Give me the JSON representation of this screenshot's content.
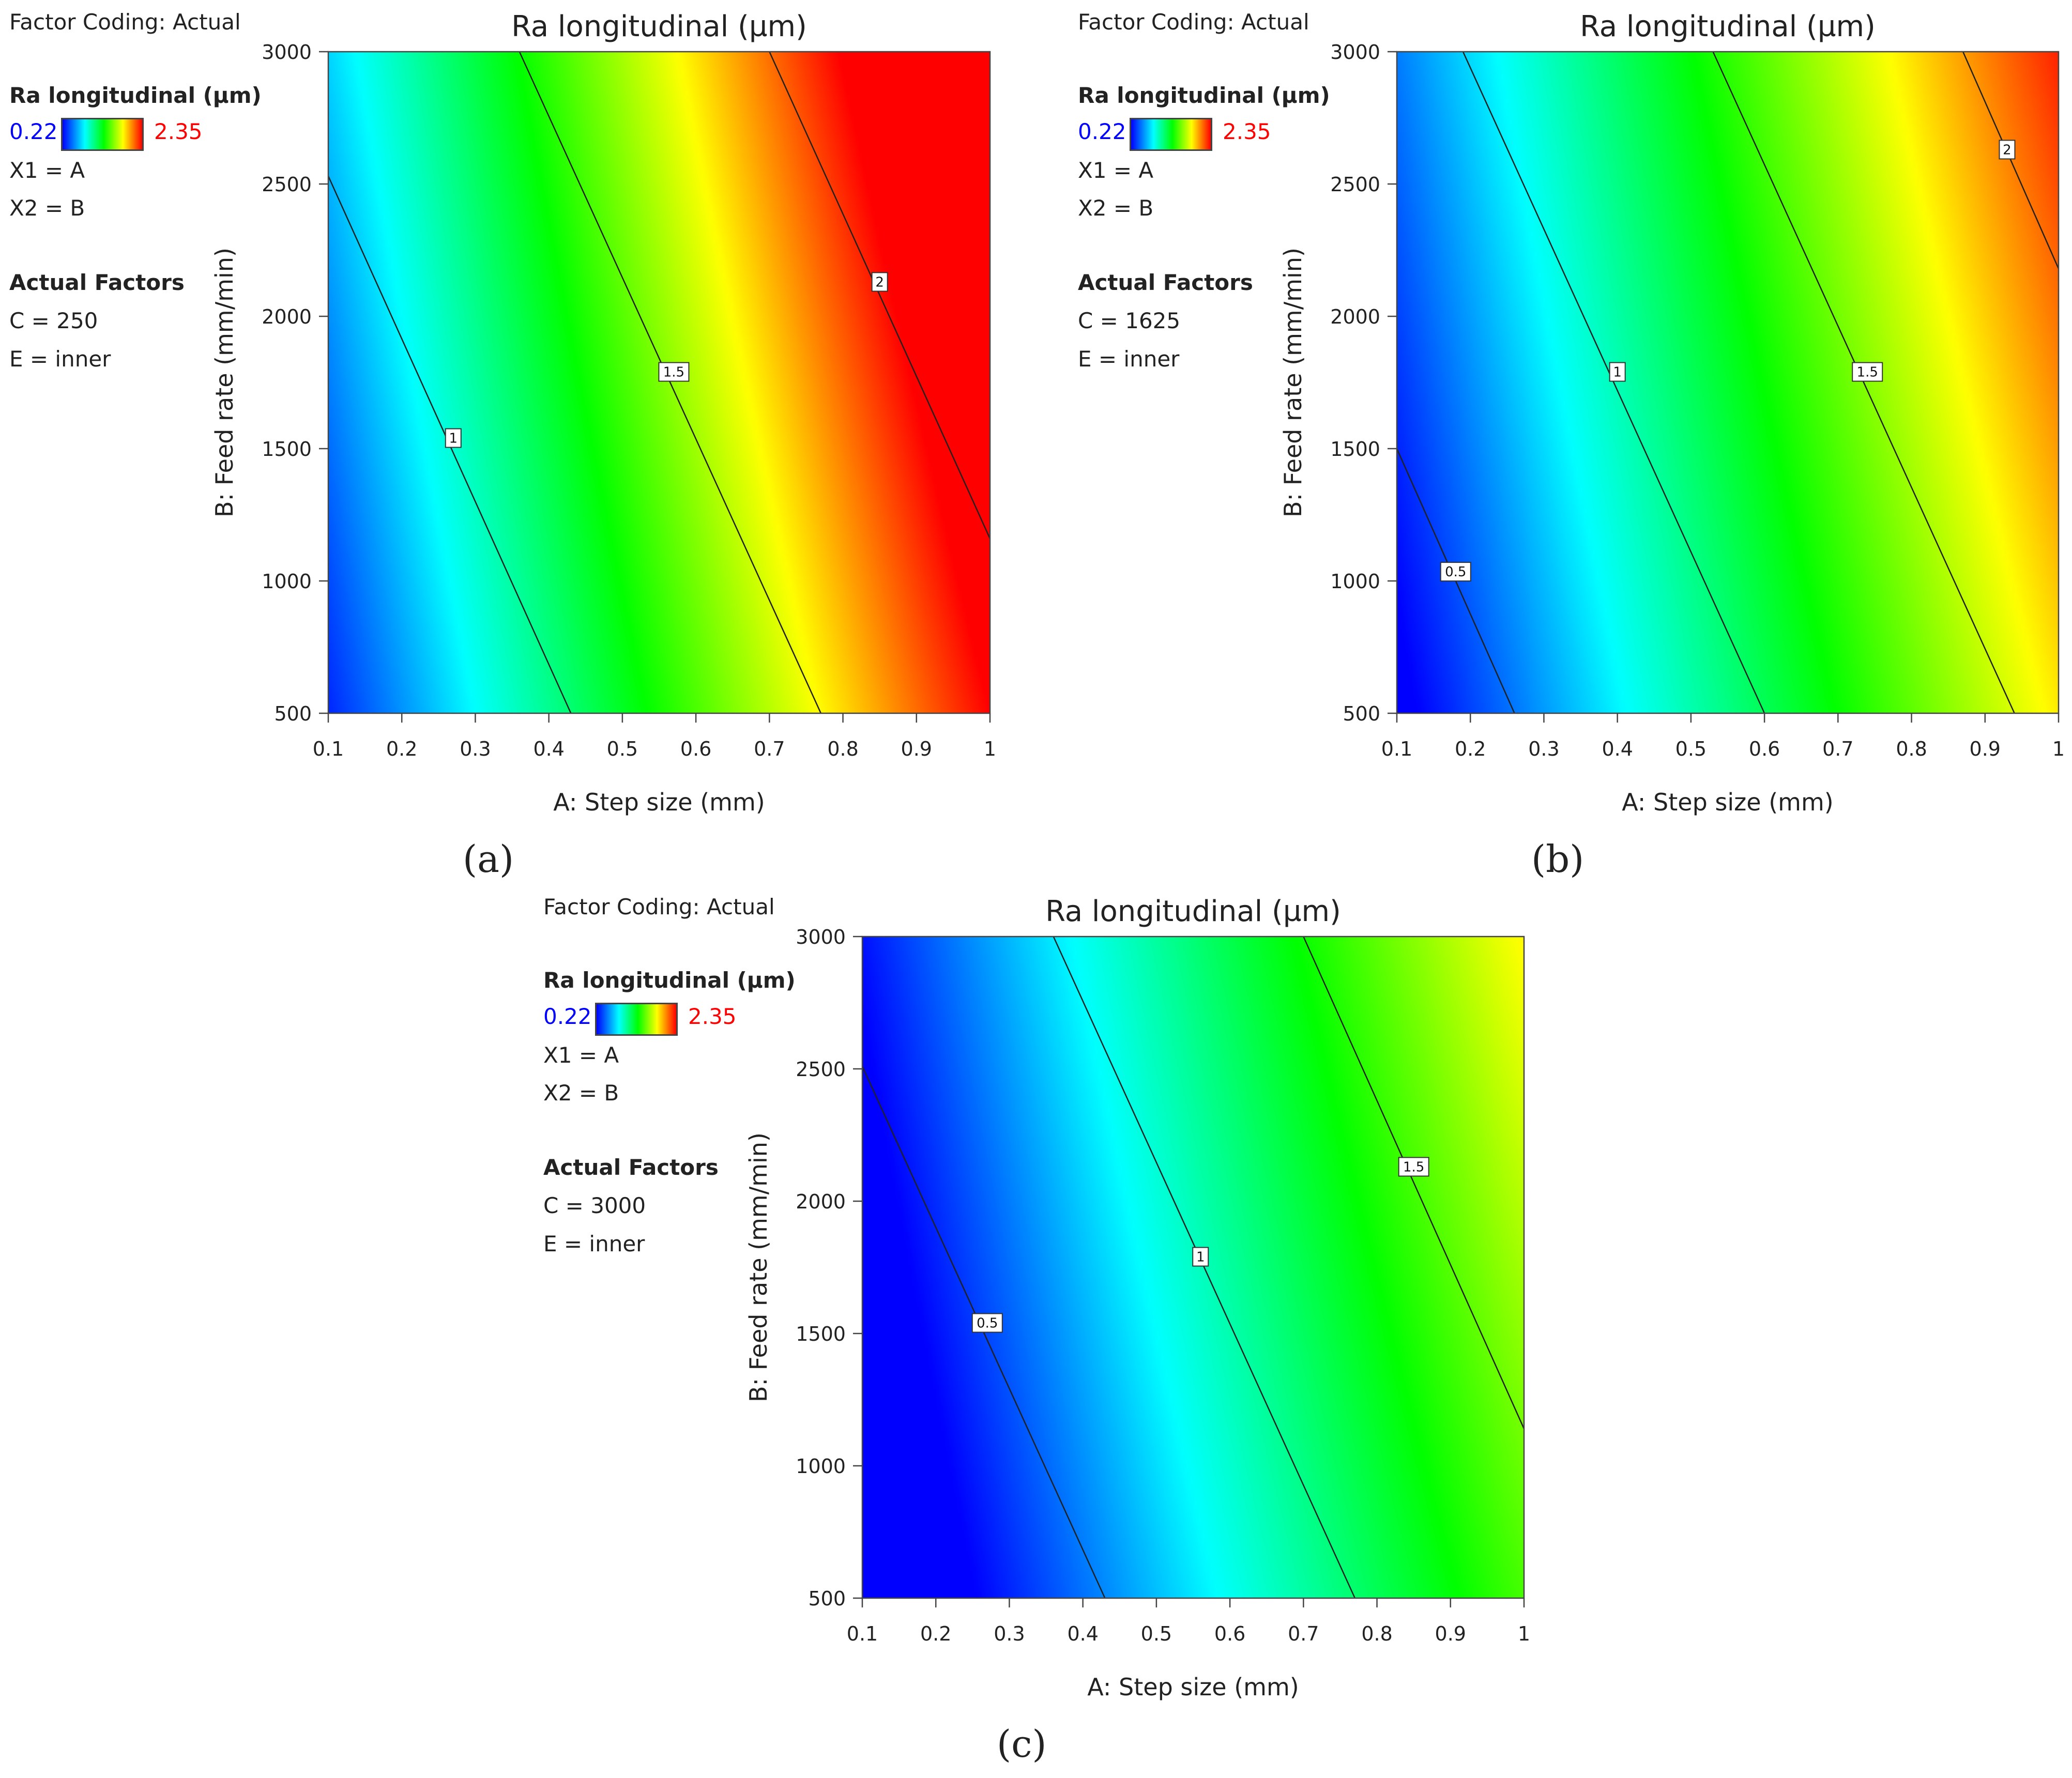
{
  "chart_data": [
    {
      "type": "heatmap",
      "panel_label": "(a)",
      "title": "Ra longitudinal (µm)",
      "xlabel": "A: Step size (mm)",
      "ylabel": "B: Feed rate (mm/min)",
      "xlim": [
        0.1,
        1.0
      ],
      "ylim": [
        500,
        3000
      ],
      "x_ticks": [
        "0.1",
        "0.2",
        "0.3",
        "0.4",
        "0.5",
        "0.6",
        "0.7",
        "0.8",
        "0.9",
        "1"
      ],
      "y_ticks": [
        "500",
        "1000",
        "1500",
        "2000",
        "2500",
        "3000"
      ],
      "color_range": [
        0.22,
        2.35
      ],
      "colormap": [
        "#0000ff",
        "#00ffff",
        "#00ff00",
        "#ffff00",
        "#ff0000"
      ],
      "legend": {
        "factor_coding": "Factor Coding: Actual",
        "response_name": "Ra longitudinal (µm)",
        "min_label": "0.22",
        "max_label": "2.35",
        "x1": "X1 = A",
        "x2": "X2 = B",
        "actual_factors_title": "Actual Factors",
        "factor_c": "C = 250",
        "factor_e": "E = inner"
      },
      "contours": [
        {
          "level": "1",
          "label_at": [
            0.27,
            1540
          ],
          "points": [
            [
              0.1,
              2530
            ],
            [
              0.43,
              500
            ]
          ]
        },
        {
          "level": "1.5",
          "label_at": [
            0.57,
            1790
          ],
          "points": [
            [
              0.36,
              3000
            ],
            [
              0.77,
              500
            ]
          ]
        },
        {
          "level": "2",
          "label_at": [
            0.85,
            2130
          ],
          "points": [
            [
              0.7,
              3000
            ],
            [
              1.0,
              1160
            ]
          ]
        }
      ],
      "surface": {
        "a0": 0.0,
        "a1": 2.25,
        "a2": 0.00014,
        "a12": 6e-05
      }
    },
    {
      "type": "heatmap",
      "panel_label": "(b)",
      "title": "Ra longitudinal (µm)",
      "xlabel": "A: Step size (mm)",
      "ylabel": "B: Feed rate (mm/min)",
      "xlim": [
        0.1,
        1.0
      ],
      "ylim": [
        500,
        3000
      ],
      "x_ticks": [
        "0.1",
        "0.2",
        "0.3",
        "0.4",
        "0.5",
        "0.6",
        "0.7",
        "0.8",
        "0.9",
        "1"
      ],
      "y_ticks": [
        "500",
        "1000",
        "1500",
        "2000",
        "2500",
        "3000"
      ],
      "color_range": [
        0.22,
        2.35
      ],
      "colormap": [
        "#0000ff",
        "#00ffff",
        "#00ff00",
        "#ffff00",
        "#ff0000"
      ],
      "legend": {
        "factor_coding": "Factor Coding: Actual",
        "response_name": "Ra longitudinal (µm)",
        "min_label": "0.22",
        "max_label": "2.35",
        "x1": "X1 = A",
        "x2": "X2 = B",
        "actual_factors_title": "Actual Factors",
        "factor_c": "C = 1625",
        "factor_e": "E = inner"
      },
      "contours": [
        {
          "level": "0.5",
          "label_at": [
            0.18,
            1035
          ],
          "points": [
            [
              0.1,
              1500
            ],
            [
              0.26,
              500
            ]
          ]
        },
        {
          "level": "1",
          "label_at": [
            0.4,
            1790
          ],
          "points": [
            [
              0.19,
              3000
            ],
            [
              0.6,
              500
            ]
          ]
        },
        {
          "level": "1.5",
          "label_at": [
            0.74,
            1790
          ],
          "points": [
            [
              0.53,
              3000
            ],
            [
              0.94,
              500
            ]
          ]
        },
        {
          "level": "2",
          "label_at": [
            0.93,
            2630
          ],
          "points": [
            [
              0.87,
              3000
            ],
            [
              1.0,
              2180
            ]
          ]
        }
      ],
      "surface": {
        "a0": -0.08,
        "a1": 1.85,
        "a2": 0.00012,
        "a12": 5e-05
      }
    },
    {
      "type": "heatmap",
      "panel_label": "(c)",
      "title": "Ra longitudinal (µm)",
      "xlabel": "A: Step size (mm)",
      "ylabel": "B: Feed rate (mm/min)",
      "xlim": [
        0.1,
        1.0
      ],
      "ylim": [
        500,
        3000
      ],
      "x_ticks": [
        "0.1",
        "0.2",
        "0.3",
        "0.4",
        "0.5",
        "0.6",
        "0.7",
        "0.8",
        "0.9",
        "1"
      ],
      "y_ticks": [
        "500",
        "1000",
        "1500",
        "2000",
        "2500",
        "3000"
      ],
      "color_range": [
        0.22,
        2.35
      ],
      "colormap": [
        "#0000ff",
        "#00ffff",
        "#00ff00",
        "#ffff00",
        "#ff0000"
      ],
      "legend": {
        "factor_coding": "Factor Coding: Actual",
        "response_name": "Ra longitudinal (µm)",
        "min_label": "0.22",
        "max_label": "2.35",
        "x1": "X1 = A",
        "x2": "X2 = B",
        "actual_factors_title": "Actual Factors",
        "factor_c": "C = 3000",
        "factor_e": "E = inner"
      },
      "contours": [
        {
          "level": "0.5",
          "label_at": [
            0.27,
            1540
          ],
          "points": [
            [
              0.1,
              2510
            ],
            [
              0.43,
              500
            ]
          ]
        },
        {
          "level": "1",
          "label_at": [
            0.56,
            1790
          ],
          "points": [
            [
              0.36,
              3000
            ],
            [
              0.77,
              500
            ]
          ]
        },
        {
          "level": "1.5",
          "label_at": [
            0.85,
            2130
          ],
          "points": [
            [
              0.7,
              3000
            ],
            [
              1.0,
              1140
            ]
          ]
        }
      ],
      "surface": {
        "a0": -0.25,
        "a1": 1.6,
        "a2": 0.00011,
        "a12": 5e-05
      }
    }
  ]
}
